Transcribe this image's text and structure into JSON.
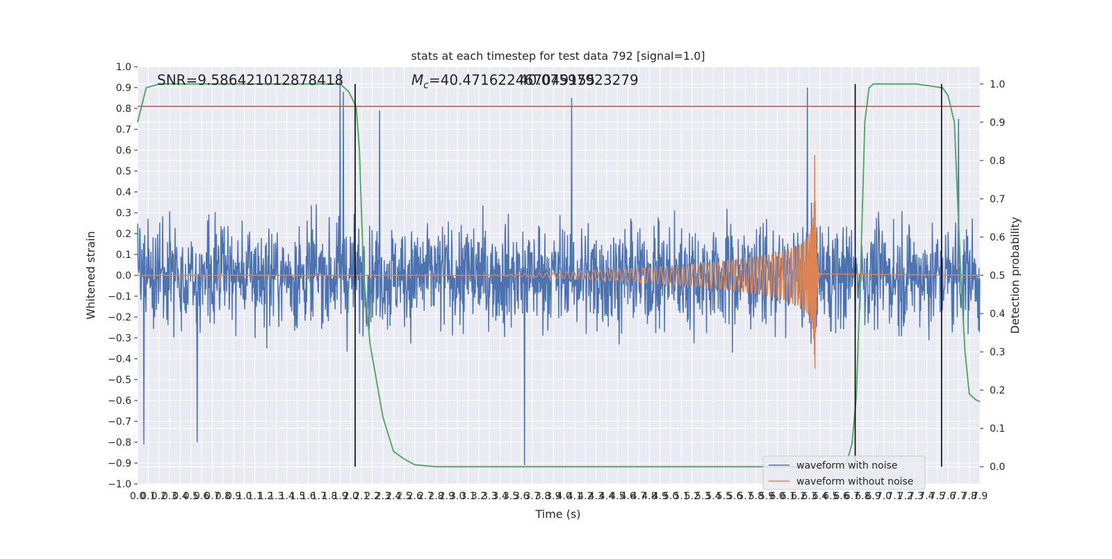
{
  "chart_data": {
    "type": "line",
    "title": "stats at each timestep for test data 792 [signal=1.0]",
    "xlabel": "Time (s)",
    "ylabel": "Whitened strain",
    "y2label": "Detection probability",
    "xlim": [
      0.0,
      7.9
    ],
    "ylim": [
      -1.0,
      1.0
    ],
    "y2lim": [
      -0.045,
      1.045
    ],
    "x_tick_step": 0.1,
    "y_ticks": [
      -1.0,
      -0.9,
      -0.8,
      -0.7,
      -0.6,
      -0.5,
      -0.4,
      -0.3,
      -0.2,
      -0.1,
      0.0,
      0.1,
      0.2,
      0.3,
      0.4,
      0.5,
      0.6,
      0.7,
      0.8,
      0.9,
      1.0
    ],
    "y2_ticks": [
      0.0,
      0.1,
      0.2,
      0.3,
      0.4,
      0.5,
      0.6,
      0.7,
      0.8,
      0.9,
      1.0
    ],
    "grid": true,
    "legend_position": "lower-right",
    "annotations": {
      "snr": "SNR=9.586421012878418",
      "mc_symbol": "M",
      "mc_subscript": "c",
      "mc_value": "=40.471622467049155",
      "mc_overlap": "40.07597923279"
    },
    "colors": {
      "noise": "#4c72b0",
      "clean": "#dd8452",
      "probability": "#55a868",
      "threshold": "#c44e52",
      "marker": "#000000",
      "background": "#eaeaf2",
      "grid": "#ffffff"
    },
    "series": [
      {
        "name": "waveform with noise",
        "kind": "noise",
        "sample_rate": 256,
        "amplitude_envelope": [
          0.42,
          -0.42
        ],
        "notable_peaks": [
          [
            0.06,
            -0.81
          ],
          [
            0.56,
            -0.8
          ],
          [
            1.9,
            0.99
          ],
          [
            1.93,
            0.88
          ],
          [
            2.27,
            0.79
          ],
          [
            4.07,
            0.85
          ],
          [
            3.63,
            -0.91
          ],
          [
            6.28,
            0.9
          ],
          [
            7.7,
            0.75
          ]
        ]
      },
      {
        "name": "waveform without noise",
        "kind": "chirp",
        "start": 3.2,
        "merger": 6.35,
        "peak": 0.58,
        "trough": -0.51
      },
      {
        "name": "detection probability",
        "axis": "right",
        "x": [
          0.0,
          0.08,
          0.2,
          0.5,
          1.0,
          1.5,
          1.9,
          1.98,
          2.05,
          2.08,
          2.12,
          2.18,
          2.3,
          2.4,
          2.5,
          2.6,
          2.8,
          3.5,
          5.0,
          6.5,
          6.6,
          6.65,
          6.7,
          6.74,
          6.78,
          6.82,
          6.86,
          6.9,
          7.0,
          7.3,
          7.55,
          7.6,
          7.66,
          7.72,
          7.76,
          7.8,
          7.86,
          7.9
        ],
        "y": [
          0.9,
          0.99,
          1.0,
          1.0,
          1.0,
          1.0,
          1.0,
          0.98,
          0.94,
          0.83,
          0.5,
          0.32,
          0.13,
          0.04,
          0.02,
          0.005,
          0.0,
          0.0,
          0.0,
          0.0,
          0.001,
          0.01,
          0.06,
          0.18,
          0.5,
          0.9,
          0.99,
          1.0,
          1.0,
          1.0,
          0.99,
          0.97,
          0.9,
          0.5,
          0.3,
          0.19,
          0.175,
          0.17
        ]
      }
    ],
    "threshold": {
      "value": 0.81,
      "axis": "left"
    },
    "vertical_markers": [
      2.04,
      6.73,
      7.54
    ]
  },
  "legend": {
    "items": [
      {
        "label": "waveform with noise",
        "color": "#4c72b0"
      },
      {
        "label": "waveform without noise",
        "color": "#dd8452"
      }
    ]
  }
}
